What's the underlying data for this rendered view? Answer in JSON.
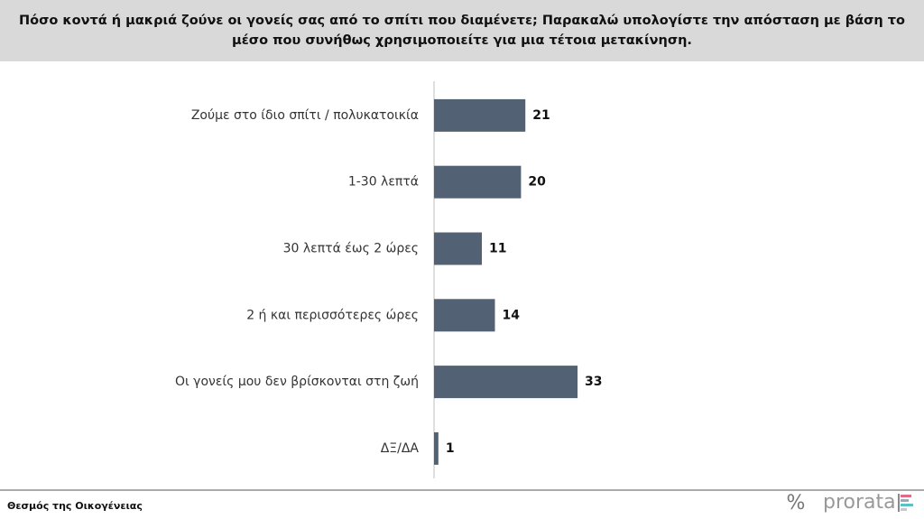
{
  "chart_data": {
    "type": "bar",
    "title": "Πόσο κοντά ή μακριά ζούνε οι γονείς σας από το σπίτι που διαμένετε; Παρακαλώ υπολογίστε την απόσταση με βάση το μέσο που συνήθως χρησιμοποιείτε για μια τέτοια μετακίνηση.",
    "categories": [
      "Ζούμε στο ίδιο σπίτι / πολυκατοικία",
      "1-30 λεπτά",
      "30 λεπτά έως 2 ώρες",
      "2 ή και περισσότερες ώρες",
      "Οι γονείς μου δεν βρίσκονται στη ζωή",
      "ΔΞ/ΔΑ"
    ],
    "values": [
      21,
      20,
      11,
      14,
      33,
      1
    ],
    "color": "#526173"
  },
  "footer": {
    "source": "Θεσμός της Οικογένειας",
    "logo_symbol": "%",
    "logo": "prorata"
  }
}
